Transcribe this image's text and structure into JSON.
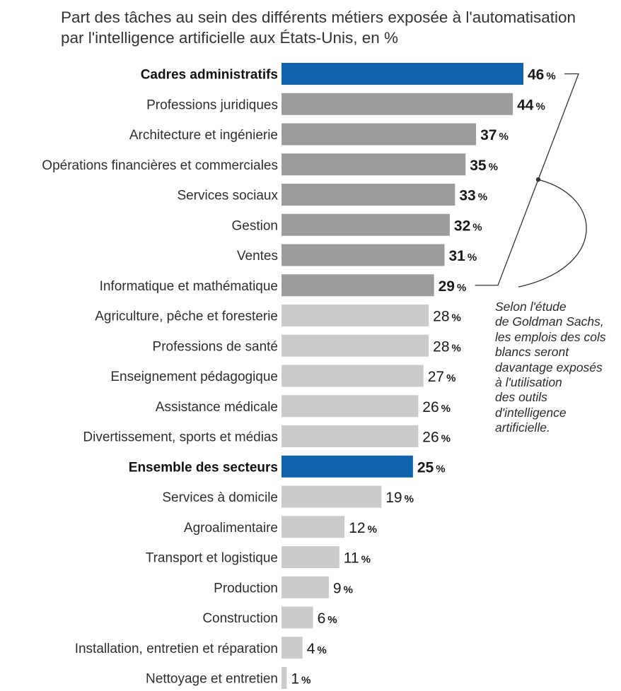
{
  "subtitle": {
    "line1": "Part des tâches au sein des différents métiers exposée à l'automatisation",
    "line2": "par l'intelligence artificielle aux États-Unis, en %"
  },
  "annotation": {
    "lines": [
      "Selon l'étude",
      "de Goldman Sachs,",
      "les emplois des cols",
      "blancs seront",
      "davantage exposés",
      "à l'utilisation",
      "des outils",
      "d'intelligence",
      "artificielle."
    ]
  },
  "colors": {
    "highlight": "#0f63ad",
    "group_dark": "#9c9c9c",
    "group_light": "#cbcbcb",
    "leader_line": "#333333"
  },
  "chart_data": {
    "type": "bar",
    "orientation": "horizontal",
    "unit": "%",
    "categories": [
      "Cadres administratifs",
      "Professions juridiques",
      "Architecture et ingénierie",
      "Opérations financières et commerciales",
      "Services sociaux",
      "Gestion",
      "Ventes",
      "Informatique et mathématique",
      "Agriculture, pêche et foresterie",
      "Professions de santé",
      "Enseignement pédagogique",
      "Assistance médicale",
      "Divertissement, sports et médias",
      "Ensemble des secteurs",
      "Services à domicile",
      "Agroalimentaire",
      "Transport et logistique",
      "Production",
      "Construction",
      "Installation, entretien et réparation",
      "Nettoyage et entretien"
    ],
    "values": [
      46,
      44,
      37,
      35,
      33,
      32,
      31,
      29,
      28,
      28,
      27,
      26,
      26,
      25,
      19,
      12,
      11,
      9,
      6,
      4,
      1
    ],
    "highlighted": [
      "Cadres administratifs",
      "Ensemble des secteurs"
    ],
    "white_collar_group": [
      "Cadres administratifs",
      "Professions juridiques",
      "Architecture et ingénierie",
      "Opérations financières et commerciales",
      "Services sociaux",
      "Gestion",
      "Ventes",
      "Informatique et mathématique"
    ],
    "xlim": [
      0,
      46
    ],
    "grid": false,
    "legend": "none"
  }
}
